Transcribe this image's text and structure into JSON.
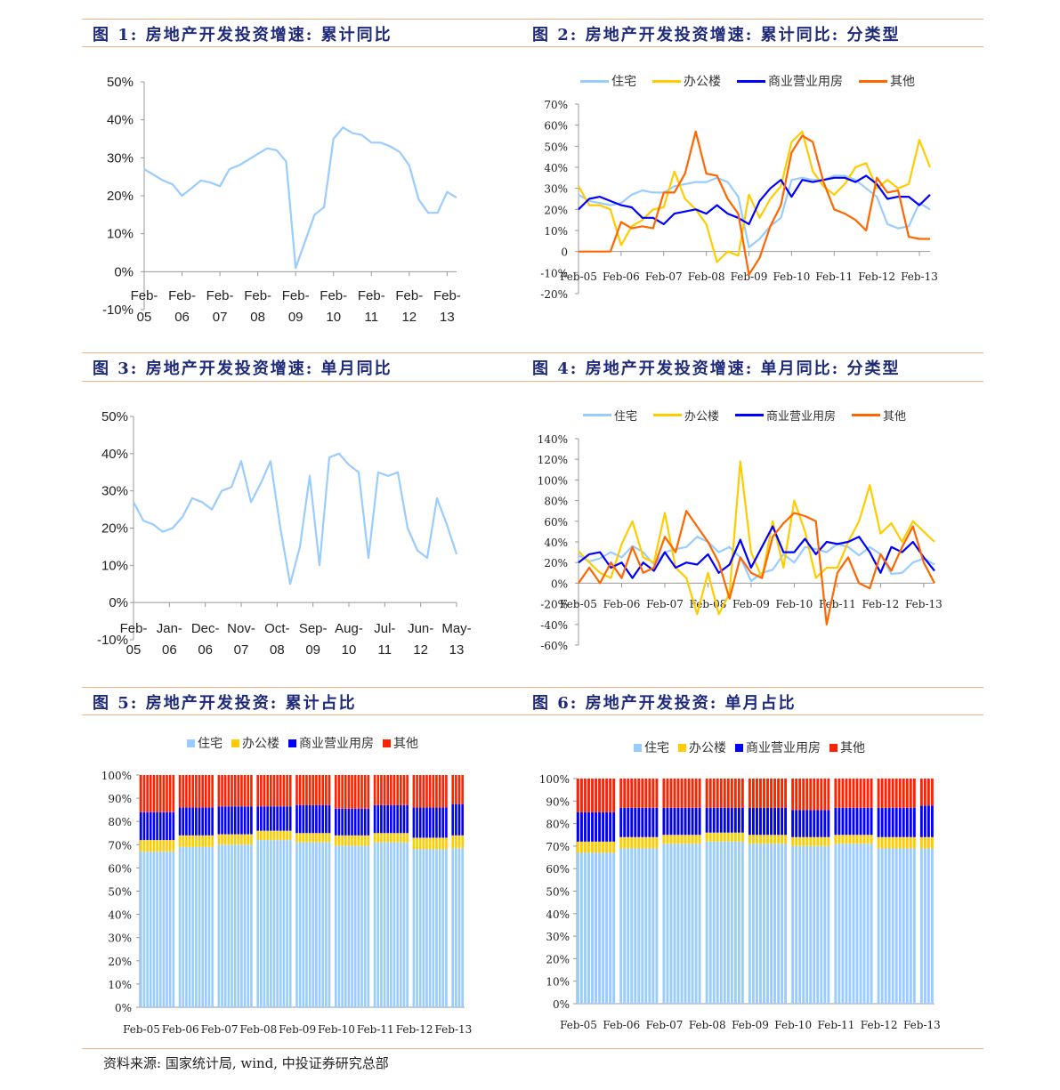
{
  "figures": [
    {
      "title": "图 1: 房地产开发投资增速: 累计同比"
    },
    {
      "title": "图 2: 房地产开发投资增速: 累计同比: 分类型"
    },
    {
      "title": "图 3: 房地产开发投资增速: 单月同比"
    },
    {
      "title": "图 4: 房地产开发投资增速: 单月同比: 分类型"
    },
    {
      "title": "图 5: 房地产开发投资: 累计占比"
    },
    {
      "title": "图 6: 房地产开发投资: 单月占比"
    }
  ],
  "source": "资料来源: 国家统计局, wind, 中投证券研究总部",
  "colors": {
    "residential": "#99ccff",
    "office": "#ffcc00",
    "commercial": "#0000ff",
    "other": "#ff6600",
    "other_bar": "#ff2200",
    "title": "#1f2a7a",
    "rule": "#f4b183"
  },
  "legend": {
    "residential": "住宅",
    "office": "办公楼",
    "commercial": "商业营业用房",
    "other": "其他"
  },
  "chart_data": [
    {
      "type": "line",
      "ylim": [
        -10,
        50
      ],
      "yticks": [
        "-10%",
        "0%",
        "10%",
        "20%",
        "30%",
        "40%",
        "50%"
      ],
      "ytick_values": [
        -10,
        0,
        10,
        20,
        30,
        40,
        50
      ],
      "xticks": [
        "Feb-05",
        "Feb-06",
        "Feb-07",
        "Feb-08",
        "Feb-09",
        "Feb-10",
        "Feb-11",
        "Feb-12",
        "Feb-13"
      ],
      "x": [
        "2005-02",
        "2005-05",
        "2005-08",
        "2005-11",
        "2006-02",
        "2006-05",
        "2006-08",
        "2006-11",
        "2007-02",
        "2007-05",
        "2007-08",
        "2007-11",
        "2008-02",
        "2008-05",
        "2008-08",
        "2008-11",
        "2009-02",
        "2009-05",
        "2009-08",
        "2009-11",
        "2010-02",
        "2010-05",
        "2010-08",
        "2010-11",
        "2011-02",
        "2011-05",
        "2011-08",
        "2011-11",
        "2012-02",
        "2012-05",
        "2012-08",
        "2012-11",
        "2013-02",
        "2013-05"
      ],
      "series": [
        {
          "color": "#99ccff",
          "values": [
            27,
            25.5,
            24,
            23,
            20,
            22,
            24,
            23.5,
            22.5,
            27,
            28,
            29.5,
            31,
            32.5,
            32,
            29,
            1,
            8,
            15,
            17,
            35,
            38,
            36.5,
            36,
            34,
            34,
            33,
            31.5,
            28,
            19,
            15.5,
            15.5,
            21,
            19.5
          ]
        }
      ]
    },
    {
      "type": "line",
      "ylim": [
        -20,
        70
      ],
      "yticks": [
        "-20%",
        "-10%",
        "0",
        "10%",
        "20%",
        "30%",
        "40%",
        "50%",
        "60%",
        "70%"
      ],
      "ytick_values": [
        -20,
        -10,
        0,
        10,
        20,
        30,
        40,
        50,
        60,
        70
      ],
      "xticks": [
        "Feb-05",
        "Feb-06",
        "Feb-07",
        "Feb-08",
        "Feb-09",
        "Feb-10",
        "Feb-11",
        "Feb-12",
        "Feb-13"
      ],
      "x": [
        "2005-02",
        "2005-05",
        "2005-08",
        "2005-11",
        "2006-02",
        "2006-05",
        "2006-08",
        "2006-11",
        "2007-02",
        "2007-05",
        "2007-08",
        "2007-11",
        "2008-02",
        "2008-05",
        "2008-08",
        "2008-11",
        "2009-02",
        "2009-05",
        "2009-08",
        "2009-11",
        "2010-02",
        "2010-05",
        "2010-08",
        "2010-11",
        "2011-02",
        "2011-05",
        "2011-08",
        "2011-11",
        "2012-02",
        "2012-05",
        "2012-08",
        "2012-11",
        "2013-02",
        "2013-05"
      ],
      "series": [
        {
          "name": "住宅",
          "color": "#99ccff",
          "values": [
            27,
            24,
            23,
            22,
            23,
            27,
            29,
            28,
            28,
            31,
            32,
            33,
            33,
            35,
            33,
            26,
            2,
            6,
            12,
            16,
            34,
            35,
            34,
            34,
            36,
            36,
            34,
            30,
            26,
            13,
            11,
            12,
            23,
            20
          ]
        },
        {
          "name": "办公楼",
          "color": "#ffcc00",
          "values": [
            31,
            22,
            22,
            20,
            3,
            12,
            15,
            20,
            21,
            38,
            25,
            20,
            13,
            -5,
            0,
            -2,
            27,
            16,
            25,
            31,
            52,
            57,
            38,
            31,
            27,
            32,
            40,
            42,
            30,
            34,
            30,
            32,
            53,
            40
          ]
        },
        {
          "name": "商业营业用房",
          "color": "#0000ff",
          "values": [
            20,
            25,
            26,
            24,
            22,
            21,
            16,
            16,
            13,
            18,
            19,
            20,
            18,
            22,
            18,
            16,
            13,
            24,
            30,
            34,
            26,
            34,
            33,
            34,
            35,
            35,
            33,
            36,
            32,
            25,
            26,
            26,
            22,
            27
          ]
        },
        {
          "name": "其他",
          "color": "#ff6600",
          "values": [
            0,
            0,
            0,
            0,
            14,
            11,
            12,
            11,
            28,
            28,
            37,
            57,
            37,
            36,
            25,
            18,
            -11,
            -3,
            12,
            22,
            47,
            55,
            52,
            33,
            20,
            18,
            15,
            10,
            35,
            28,
            29,
            7,
            6,
            6
          ]
        }
      ]
    },
    {
      "type": "line",
      "ylim": [
        -10,
        50
      ],
      "yticks": [
        "-10%",
        "0%",
        "10%",
        "20%",
        "30%",
        "40%",
        "50%"
      ],
      "ytick_values": [
        -10,
        0,
        10,
        20,
        30,
        40,
        50
      ],
      "xticks": [
        "Feb-05",
        "Jan-06",
        "Dec-06",
        "Nov-07",
        "Oct-08",
        "Sep-09",
        "Aug-10",
        "Jul-11",
        "Jun-12",
        "May-13"
      ],
      "x": [
        "2005-02",
        "2005-05",
        "2005-08",
        "2005-11",
        "2006-02",
        "2006-05",
        "2006-08",
        "2006-11",
        "2007-02",
        "2007-05",
        "2007-08",
        "2007-11",
        "2008-02",
        "2008-05",
        "2008-08",
        "2008-11",
        "2009-02",
        "2009-05",
        "2009-08",
        "2009-11",
        "2010-02",
        "2010-05",
        "2010-08",
        "2010-11",
        "2011-02",
        "2011-05",
        "2011-08",
        "2011-11",
        "2012-02",
        "2012-05",
        "2012-08",
        "2012-11",
        "2013-02",
        "2013-05"
      ],
      "series": [
        {
          "color": "#99ccff",
          "values": [
            27,
            22,
            21,
            19,
            20,
            23,
            28,
            27,
            25,
            30,
            31,
            38,
            27,
            32,
            38,
            20,
            5,
            15,
            34,
            10,
            39,
            40,
            37,
            35,
            12,
            35,
            34,
            35,
            20,
            14,
            12,
            28,
            21,
            13
          ]
        }
      ]
    },
    {
      "type": "line",
      "ylim": [
        -60,
        140
      ],
      "yticks": [
        "-60%",
        "-40%",
        "-20%",
        "0%",
        "20%",
        "40%",
        "60%",
        "80%",
        "100%",
        "120%",
        "140%"
      ],
      "ytick_values": [
        -60,
        -40,
        -20,
        0,
        20,
        40,
        60,
        80,
        100,
        120,
        140
      ],
      "xticks": [
        "Feb-05",
        "Feb-06",
        "Feb-07",
        "Feb-08",
        "Feb-09",
        "Feb-10",
        "Feb-11",
        "Feb-12",
        "Feb-13"
      ],
      "x": [
        "2005-02",
        "2005-05",
        "2005-08",
        "2005-11",
        "2006-02",
        "2006-05",
        "2006-08",
        "2006-11",
        "2007-02",
        "2007-05",
        "2007-08",
        "2007-11",
        "2008-02",
        "2008-05",
        "2008-08",
        "2008-11",
        "2009-02",
        "2009-05",
        "2009-08",
        "2009-11",
        "2010-02",
        "2010-05",
        "2010-08",
        "2010-11",
        "2011-02",
        "2011-05",
        "2011-08",
        "2011-11",
        "2012-02",
        "2012-05",
        "2012-08",
        "2012-11",
        "2013-02",
        "2013-05"
      ],
      "series": [
        {
          "name": "住宅",
          "color": "#99ccff",
          "values": [
            27,
            21,
            24,
            30,
            25,
            36,
            30,
            18,
            30,
            33,
            35,
            45,
            40,
            30,
            35,
            25,
            2,
            10,
            13,
            28,
            20,
            35,
            33,
            30,
            38,
            35,
            27,
            35,
            28,
            9,
            10,
            20,
            24,
            18
          ]
        },
        {
          "name": "办公楼",
          "color": "#ffcc00",
          "values": [
            31,
            20,
            10,
            5,
            38,
            60,
            25,
            20,
            68,
            15,
            5,
            -30,
            10,
            -30,
            -10,
            118,
            30,
            5,
            60,
            15,
            80,
            50,
            5,
            15,
            15,
            40,
            60,
            95,
            48,
            58,
            40,
            60,
            50,
            40
          ]
        },
        {
          "name": "商业营业用房",
          "color": "#0000ff",
          "values": [
            20,
            28,
            30,
            15,
            20,
            5,
            20,
            12,
            30,
            15,
            20,
            18,
            28,
            10,
            18,
            42,
            15,
            35,
            55,
            30,
            30,
            43,
            28,
            40,
            38,
            40,
            45,
            30,
            10,
            35,
            30,
            40,
            25,
            12
          ]
        },
        {
          "name": "其他",
          "color": "#ff6600",
          "values": [
            0,
            15,
            0,
            20,
            5,
            35,
            10,
            15,
            45,
            30,
            70,
            55,
            40,
            20,
            -15,
            25,
            10,
            5,
            45,
            58,
            68,
            65,
            60,
            -40,
            10,
            25,
            0,
            -5,
            28,
            12,
            35,
            55,
            20,
            0
          ]
        }
      ]
    },
    {
      "type": "bar",
      "stacked": true,
      "ylim": [
        0,
        100
      ],
      "yticks": [
        "0%",
        "10%",
        "20%",
        "30%",
        "40%",
        "50%",
        "60%",
        "70%",
        "80%",
        "90%",
        "100%"
      ],
      "series_names": [
        "住宅",
        "办公楼",
        "商业营业用房",
        "其他"
      ],
      "series_colors": [
        "#99ccff",
        "#ffcc00",
        "#0000ff",
        "#ff2200"
      ],
      "groups": [
        {
          "label": "Feb-05",
          "months": 11,
          "values": [
            67,
            5,
            12,
            16
          ]
        },
        {
          "label": "Feb-06",
          "months": 11,
          "values": [
            69,
            5,
            12,
            14
          ]
        },
        {
          "label": "Feb-07",
          "months": 11,
          "values": [
            70,
            4.5,
            12,
            13.5
          ]
        },
        {
          "label": "Feb-08",
          "months": 11,
          "values": [
            72,
            4,
            10.5,
            13.5
          ]
        },
        {
          "label": "Feb-09",
          "months": 11,
          "values": [
            71,
            4,
            12,
            13
          ]
        },
        {
          "label": "Feb-10",
          "months": 11,
          "values": [
            69.5,
            4.5,
            11.5,
            14.5
          ]
        },
        {
          "label": "Feb-11",
          "months": 11,
          "values": [
            71,
            4,
            12,
            13
          ]
        },
        {
          "label": "Feb-12",
          "months": 11,
          "values": [
            68,
            5,
            13,
            14
          ]
        },
        {
          "label": "Feb-13",
          "months": 4,
          "values": [
            68.5,
            5.5,
            13.5,
            12.5
          ]
        }
      ]
    },
    {
      "type": "bar",
      "stacked": true,
      "ylim": [
        0,
        100
      ],
      "yticks": [
        "0%",
        "10%",
        "20%",
        "30%",
        "40%",
        "50%",
        "60%",
        "70%",
        "80%",
        "90%",
        "100%"
      ],
      "series_names": [
        "住宅",
        "办公楼",
        "商业营业用房",
        "其他"
      ],
      "series_colors": [
        "#99ccff",
        "#ffcc00",
        "#0000ff",
        "#ff2200"
      ],
      "groups": [
        {
          "label": "Feb-05",
          "months": 11,
          "values": [
            67,
            5,
            13,
            15
          ]
        },
        {
          "label": "Feb-06",
          "months": 11,
          "values": [
            69,
            5,
            13,
            13
          ]
        },
        {
          "label": "Feb-07",
          "months": 11,
          "values": [
            71,
            4,
            12,
            13
          ]
        },
        {
          "label": "Feb-08",
          "months": 11,
          "values": [
            72,
            4,
            11,
            13
          ]
        },
        {
          "label": "Feb-09",
          "months": 11,
          "values": [
            71,
            4,
            12,
            13
          ]
        },
        {
          "label": "Feb-10",
          "months": 11,
          "values": [
            70,
            4,
            12,
            14
          ]
        },
        {
          "label": "Feb-11",
          "months": 11,
          "values": [
            71,
            4,
            12,
            13
          ]
        },
        {
          "label": "Feb-12",
          "months": 11,
          "values": [
            69,
            5,
            13,
            13
          ]
        },
        {
          "label": "Feb-13",
          "months": 4,
          "values": [
            69,
            5,
            14,
            12
          ]
        }
      ]
    }
  ]
}
